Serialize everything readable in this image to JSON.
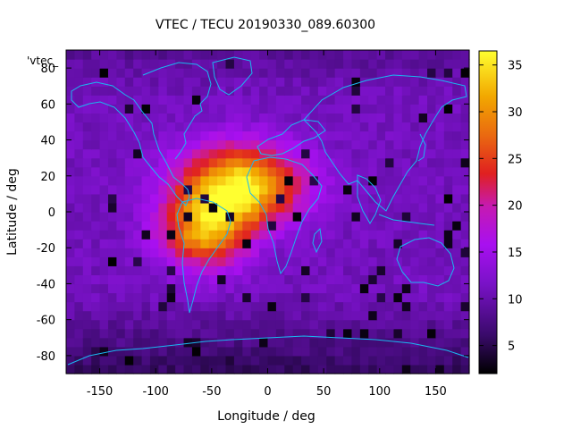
{
  "chart_data": {
    "type": "heatmap",
    "title": "VTEC / TECU 20190330_089.60300",
    "xlabel": "Longitude / deg",
    "ylabel": "Latitude / deg",
    "xlim": [
      -180,
      180
    ],
    "ylim": [
      -90,
      90
    ],
    "xticks": [
      -150,
      -100,
      -50,
      0,
      50,
      100,
      150
    ],
    "yticks": [
      -80,
      -60,
      -40,
      -20,
      0,
      20,
      40,
      60,
      80
    ],
    "colorbar": {
      "ticks": [
        5,
        10,
        15,
        20,
        25,
        30,
        35
      ],
      "range": [
        2,
        36.5
      ]
    },
    "key_label": "'vtec_",
    "peak": {
      "lon": -25,
      "lat": 15,
      "value": 36
    },
    "secondary_peak": {
      "lon": -55,
      "lat": -10,
      "value": 33
    },
    "background_min": 2
  }
}
